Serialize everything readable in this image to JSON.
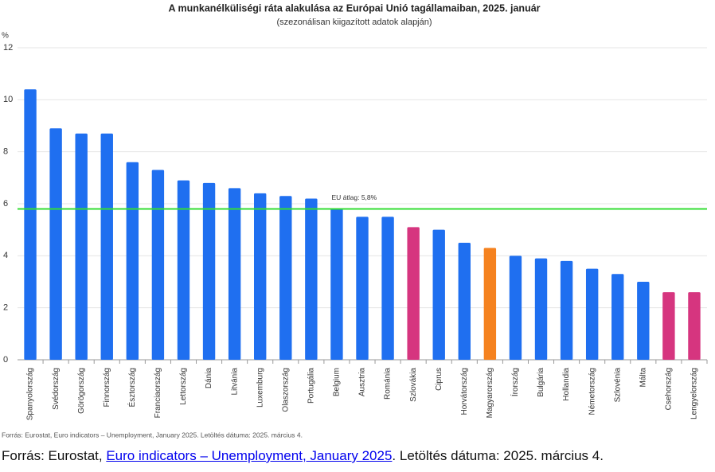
{
  "chart_data": {
    "type": "bar",
    "title": "A munkanélküliségi ráta alakulása az Európai Unió tagállamaiban, 2025. január",
    "subtitle": "(szezonálisan kiigazított adatok alapján)",
    "y_label": "%",
    "categories": [
      "Spanyolország",
      "Svédország",
      "Görögország",
      "Finnország",
      "Észtország",
      "Franciaország",
      "Lettország",
      "Dánia",
      "Litvánia",
      "Luxemburg",
      "Olaszország",
      "Portugália",
      "Belgium",
      "Ausztria",
      "Románia",
      "Szlovákia",
      "Ciprus",
      "Horvátország",
      "Magyarország",
      "Írország",
      "Bulgária",
      "Hollandia",
      "Németország",
      "Szlovénia",
      "Málta",
      "Csehország",
      "Lengyelország"
    ],
    "values": [
      10.4,
      8.9,
      8.7,
      8.7,
      7.6,
      7.3,
      6.9,
      6.8,
      6.6,
      6.4,
      6.3,
      6.2,
      5.8,
      5.5,
      5.5,
      5.1,
      5.0,
      4.5,
      4.3,
      4.0,
      3.9,
      3.8,
      3.5,
      3.3,
      3.0,
      2.6,
      2.6
    ],
    "colors": [
      "#1f6ff0",
      "#1f6ff0",
      "#1f6ff0",
      "#1f6ff0",
      "#1f6ff0",
      "#1f6ff0",
      "#1f6ff0",
      "#1f6ff0",
      "#1f6ff0",
      "#1f6ff0",
      "#1f6ff0",
      "#1f6ff0",
      "#1f6ff0",
      "#1f6ff0",
      "#1f6ff0",
      "#d6357f",
      "#1f6ff0",
      "#1f6ff0",
      "#f5821f",
      "#1f6ff0",
      "#1f6ff0",
      "#1f6ff0",
      "#1f6ff0",
      "#1f6ff0",
      "#1f6ff0",
      "#d6357f",
      "#d6357f"
    ],
    "ylim": [
      0,
      12
    ],
    "yticks": [
      0,
      2,
      4,
      6,
      8,
      10,
      12
    ],
    "grid": true,
    "reference_line": {
      "value": 5.8,
      "label": "EU átlag: 5,8%",
      "color": "#33dd33"
    },
    "source": "Forrás: Eurostat, Euro indicators – Unemployment, January 2025. Letöltés dátuma: 2025. március 4."
  },
  "caption": {
    "prefix": "Forrás: Eurostat, ",
    "link": "Euro indicators – Unemployment, January 2025",
    "suffix": ". Letöltés dátuma: 2025. március 4."
  }
}
